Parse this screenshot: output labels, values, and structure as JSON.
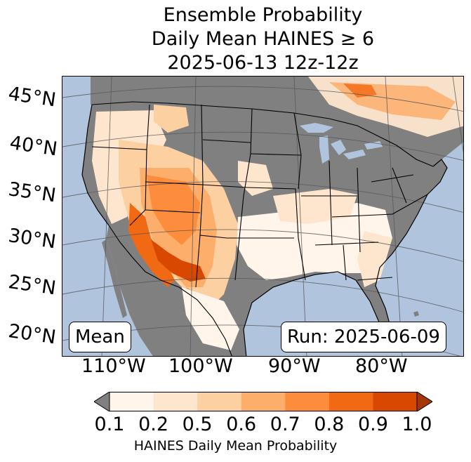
{
  "title": {
    "line1": "Ensemble Probability",
    "line2": "Daily Mean HAINES ≥ 6",
    "line3": "2025-06-13 12z-12z"
  },
  "map": {
    "lat_labels": [
      "45°N",
      "40°N",
      "35°N",
      "30°N",
      "25°N",
      "20°N"
    ],
    "lon_labels": [
      "110°W",
      "100°W",
      "90°W",
      "80°W"
    ],
    "mean_box": "Mean",
    "run_box": "Run: 2025-06-09",
    "colors": {
      "ocean": "#b0c4de",
      "land": "#808080",
      "lakes": "#b0c4de"
    }
  },
  "colorbar": {
    "ticks": [
      "0.1",
      "0.2",
      "0.5",
      "0.6",
      "0.7",
      "0.8",
      "0.9",
      "1.0"
    ],
    "colors": [
      "#fff5eb",
      "#fee6ce",
      "#fdd0a2",
      "#fdae6b",
      "#fd8d3c",
      "#f16913",
      "#d94801"
    ],
    "under_color": "#808080",
    "over_color": "#a63603",
    "label": "HAINES Daily Mean Probability"
  }
}
